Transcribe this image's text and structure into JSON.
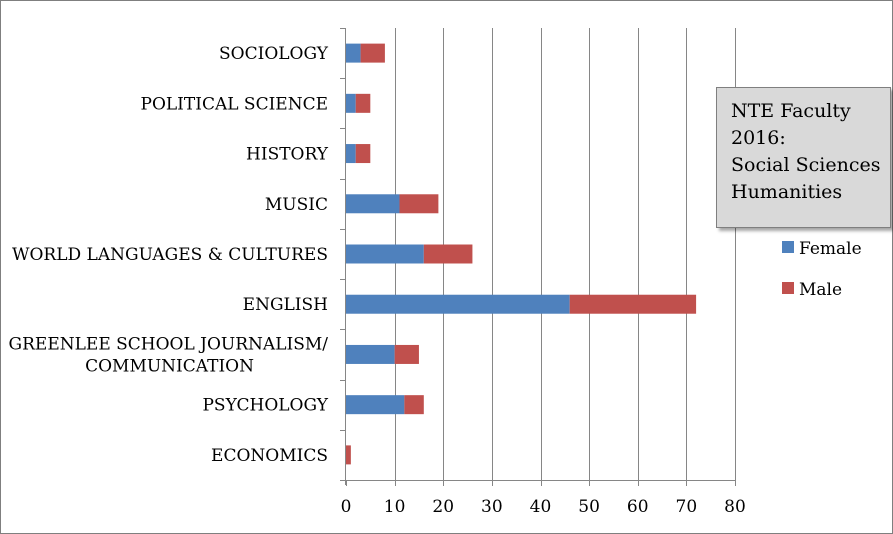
{
  "chart_data": {
    "type": "bar",
    "orientation": "horizontal",
    "stacked": true,
    "title": [
      "NTE Faculty",
      "2016:",
      "Social Sciences",
      "Humanities"
    ],
    "categories": [
      [
        "SOCIOLOGY"
      ],
      [
        "POLITICAL SCIENCE"
      ],
      [
        "HISTORY"
      ],
      [
        "MUSIC"
      ],
      [
        "WORLD LANGUAGES & CULTURES"
      ],
      [
        "ENGLISH"
      ],
      [
        "GREENLEE SCHOOL JOURNALISM/",
        "COMMUNICATION"
      ],
      [
        "PSYCHOLOGY"
      ],
      [
        "ECONOMICS"
      ]
    ],
    "series": [
      {
        "name": "Female",
        "color": "#4f81bd",
        "values": [
          3,
          2,
          2,
          11,
          16,
          46,
          10,
          12,
          0
        ]
      },
      {
        "name": "Male",
        "color": "#c0504d",
        "values": [
          5,
          3,
          3,
          8,
          10,
          26,
          5,
          4,
          1
        ]
      }
    ],
    "xlim": [
      0,
      80
    ],
    "xticks": [
      0,
      10,
      20,
      30,
      40,
      50,
      60,
      70,
      80
    ],
    "grid": true,
    "gridColor": "#868686",
    "legend_position": "right"
  }
}
